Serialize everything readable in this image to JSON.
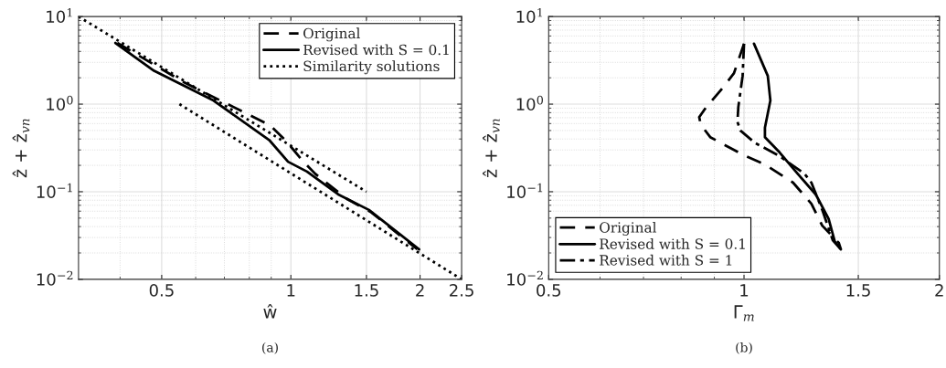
{
  "chart_data": [
    {
      "type": "line",
      "xlabel": "ŵ",
      "ylabel": "ẑ + ẑ$_{vn}$",
      "log": "xy",
      "grid": true,
      "legend": "top right",
      "xlim": [
        0.32,
        2.5
      ],
      "xticks": [
        0.5,
        1,
        1.5,
        2,
        2.5
      ],
      "ylim": [
        0.01,
        10
      ],
      "yticks": [
        {
          "value": 0.01,
          "label": "10$^{−2}$"
        },
        {
          "value": 0.1,
          "label": "10$^{−1}$"
        },
        {
          "value": 1,
          "label": "10$^{0}$"
        },
        {
          "value": 10,
          "label": "10$^{1}$"
        }
      ],
      "annotations": [
        "(a)"
      ],
      "series": [
        {
          "name": "Original",
          "color": "#000000",
          "line_style": "dashed",
          "x": [
            0.394,
            0.563,
            0.893,
            0.97,
            1.07,
            1.14,
            1.35,
            1.54,
            1.97
          ],
          "values": [
            5.0,
            1.78,
            0.575,
            0.39,
            0.22,
            0.16,
            0.083,
            0.058,
            0.022
          ]
        },
        {
          "name": "Revised with S = 0.1",
          "color": "#000000",
          "line_style": "solid",
          "x": [
            0.39,
            0.48,
            0.66,
            0.89,
            0.985,
            1.09,
            1.29,
            1.52,
            1.99
          ],
          "values": [
            5.0,
            2.4,
            1.1,
            0.39,
            0.22,
            0.17,
            0.093,
            0.062,
            0.022
          ]
        },
        {
          "name": "Similarity solutions",
          "color": "#000000",
          "line_style": "dotted",
          "x": [
            0.32,
            1.5,
            null,
            0.55,
            2.5
          ],
          "values": [
            10,
            0.1,
            null,
            1,
            0.01
          ]
        }
      ]
    },
    {
      "type": "line",
      "xlabel": "Γ$_{m}$",
      "ylabel": "ẑ + ẑ$_{vn}$",
      "log": "xy",
      "grid": true,
      "legend": "bottom left",
      "xlim": [
        0.5,
        2
      ],
      "xticks": [
        0.5,
        1,
        1.5,
        2
      ],
      "ylim": [
        0.01,
        10
      ],
      "yticks": [
        {
          "value": 0.01,
          "label": "10$^{−2}$"
        },
        {
          "value": 0.1,
          "label": "10$^{−1}$"
        },
        {
          "value": 1,
          "label": "10$^{0}$"
        },
        {
          "value": 10,
          "label": "10$^{1}$"
        }
      ],
      "annotations": [
        "(b)"
      ],
      "series": [
        {
          "name": "Original",
          "color": "#000000",
          "line_style": "dashed",
          "x": [
            1.0,
            0.965,
            0.925,
            0.875,
            0.853,
            0.858,
            0.887,
            1.0,
            1.077,
            1.19,
            1.27,
            1.32,
            1.4,
            1.41
          ],
          "values": [
            4.9,
            2.26,
            1.5,
            0.93,
            0.71,
            0.58,
            0.42,
            0.26,
            0.205,
            0.127,
            0.073,
            0.041,
            0.026,
            0.022
          ]
        },
        {
          "name": "Revised with S = 0.1",
          "color": "#000000",
          "line_style": "solid",
          "x": [
            1.036,
            1.088,
            1.098,
            1.077,
            1.077,
            1.135,
            1.21,
            1.29,
            1.35,
            1.38,
            1.41
          ],
          "values": [
            4.9,
            2.1,
            1.1,
            0.54,
            0.42,
            0.28,
            0.16,
            0.093,
            0.049,
            0.027,
            0.022
          ]
        },
        {
          "name": "Revised with S = 1",
          "color": "#000000",
          "line_style": "dashdot",
          "x": [
            1.0,
            0.995,
            0.98,
            0.977,
            0.987,
            1.04,
            1.13,
            1.24,
            1.27,
            1.32,
            1.37,
            1.41
          ],
          "values": [
            4.9,
            2.1,
            0.93,
            0.63,
            0.5,
            0.36,
            0.26,
            0.16,
            0.127,
            0.062,
            0.028,
            0.022
          ]
        }
      ]
    }
  ]
}
